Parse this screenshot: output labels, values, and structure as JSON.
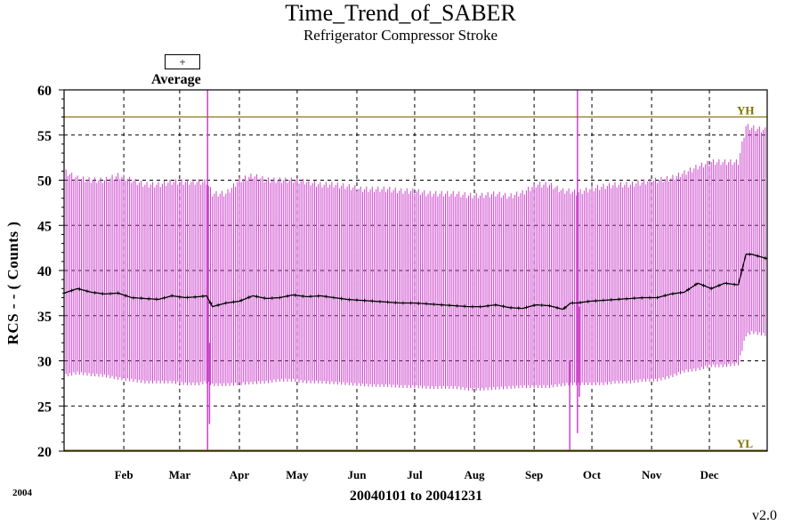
{
  "chart_data": {
    "type": "line",
    "title": "Time_Trend_of_SABER",
    "subtitle": "Refrigerator Compressor Stroke",
    "ylabel": "RCS - - ( Counts )",
    "xlabel": "20040101 to 20041231",
    "year_label": "2004",
    "version": "v2.0",
    "ylim": [
      20,
      60
    ],
    "yticks": [
      20,
      25,
      30,
      35,
      40,
      45,
      50,
      55,
      60
    ],
    "x_range_days": [
      1,
      366
    ],
    "months": [
      {
        "label": "Feb",
        "day": 32
      },
      {
        "label": "Mar",
        "day": 61
      },
      {
        "label": "Apr",
        "day": 92
      },
      {
        "label": "May",
        "day": 122
      },
      {
        "label": "Jun",
        "day": 153
      },
      {
        "label": "Jul",
        "day": 183
      },
      {
        "label": "Aug",
        "day": 214
      },
      {
        "label": "Sep",
        "day": 245
      },
      {
        "label": "Oct",
        "day": 275
      },
      {
        "label": "Nov",
        "day": 306
      },
      {
        "label": "Dec",
        "day": 336
      }
    ],
    "grid": true,
    "legend": {
      "symbol": "+",
      "label": "Average",
      "position": "top-left"
    },
    "limits": [
      {
        "name": "YH",
        "value": 57,
        "color": "#807000"
      },
      {
        "name": "YL",
        "value": 20,
        "color": "#807000"
      }
    ],
    "colors": {
      "range": "#cc44cc",
      "average": "#000000",
      "grid": "#000000"
    },
    "series": [
      {
        "name": "Average",
        "day": [
          1,
          8,
          15,
          22,
          29,
          36,
          43,
          50,
          57,
          64,
          71,
          75,
          78,
          85,
          92,
          99,
          106,
          113,
          120,
          127,
          134,
          141,
          148,
          155,
          162,
          169,
          176,
          183,
          190,
          197,
          204,
          211,
          218,
          225,
          232,
          239,
          246,
          253,
          260,
          264,
          267,
          274,
          281,
          288,
          295,
          302,
          309,
          316,
          323,
          330,
          337,
          344,
          351,
          355,
          358,
          366
        ],
        "avg": [
          37.5,
          38.0,
          37.6,
          37.4,
          37.5,
          37.0,
          36.9,
          36.8,
          37.2,
          37.0,
          37.1,
          37.2,
          36.0,
          36.4,
          36.6,
          37.2,
          36.9,
          37.0,
          37.3,
          37.1,
          37.2,
          37.0,
          36.8,
          36.7,
          36.6,
          36.5,
          36.4,
          36.4,
          36.3,
          36.2,
          36.1,
          36.0,
          36.0,
          36.2,
          35.9,
          35.8,
          36.2,
          36.1,
          35.7,
          36.4,
          36.4,
          36.6,
          36.7,
          36.8,
          36.9,
          37.0,
          37.0,
          37.4,
          37.6,
          38.6,
          38.0,
          38.6,
          38.4,
          41.8,
          41.8,
          41.3
        ],
        "max": [
          51.0,
          50.2,
          50.0,
          50.0,
          50.5,
          50.0,
          49.5,
          49.5,
          49.8,
          49.8,
          49.8,
          49.8,
          48.5,
          48.5,
          50.0,
          50.5,
          50.0,
          50.0,
          50.0,
          49.8,
          49.5,
          49.5,
          49.3,
          49.0,
          49.0,
          49.0,
          48.8,
          48.8,
          48.5,
          48.5,
          48.5,
          48.3,
          48.3,
          48.5,
          48.2,
          48.6,
          49.5,
          49.5,
          48.8,
          48.8,
          48.6,
          49.0,
          49.3,
          49.5,
          49.5,
          49.8,
          50.0,
          50.2,
          50.8,
          51.5,
          52.0,
          52.0,
          52.0,
          56.0,
          55.8,
          55.5
        ],
        "min": [
          28.5,
          28.8,
          28.6,
          28.5,
          28.2,
          28.0,
          27.8,
          27.8,
          27.8,
          27.6,
          27.6,
          27.8,
          27.5,
          27.5,
          27.6,
          27.7,
          27.8,
          28.0,
          28.0,
          27.8,
          27.8,
          27.7,
          27.6,
          27.5,
          27.4,
          27.4,
          27.3,
          27.3,
          27.2,
          27.2,
          27.2,
          27.0,
          27.0,
          27.1,
          27.2,
          27.3,
          27.3,
          27.3,
          27.5,
          27.6,
          27.6,
          27.6,
          27.6,
          27.8,
          27.8,
          28.0,
          28.0,
          28.4,
          29.0,
          29.2,
          29.6,
          29.6,
          29.8,
          33.0,
          33.3,
          33.0
        ]
      }
    ],
    "events": [
      {
        "day": 75.5,
        "low": 20.0,
        "high": 60.0
      },
      {
        "day": 76.5,
        "low": 23.0,
        "high": 32.0
      },
      {
        "day": 263.5,
        "low": 20.0,
        "high": 30.0
      },
      {
        "day": 267.5,
        "low": 22.0,
        "high": 60.0
      },
      {
        "day": 268.5,
        "low": 26.0,
        "high": 36.0
      }
    ]
  }
}
